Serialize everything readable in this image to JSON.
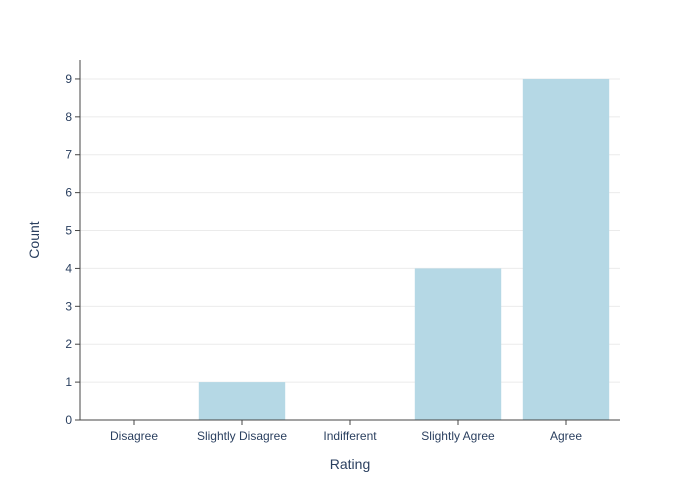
{
  "chart_data": {
    "type": "bar",
    "title": "",
    "xlabel": "Rating",
    "ylabel": "Count",
    "categories": [
      "Disagree",
      "Slightly Disagree",
      "Indifferent",
      "Slightly Agree",
      "Agree"
    ],
    "values": [
      0,
      1,
      0,
      4,
      9
    ],
    "ylim": [
      0,
      9.5
    ],
    "yticks": [
      0,
      1,
      2,
      3,
      4,
      5,
      6,
      7,
      8,
      9
    ],
    "grid": true,
    "legend": "none",
    "colors": {
      "bar": "#b5d8e5",
      "grid": "#ebebeb",
      "axis": "#444444",
      "text": "#2a3f5f"
    }
  }
}
